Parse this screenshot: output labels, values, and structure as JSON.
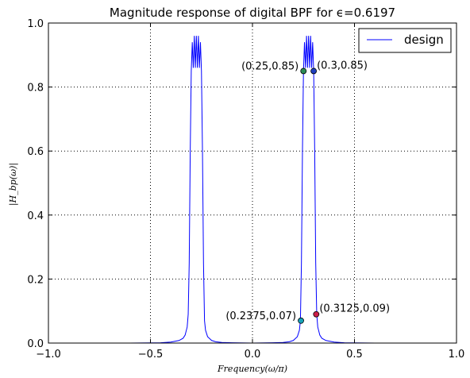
{
  "chart_data": {
    "type": "line",
    "title": "Magnitude response of digital BPF for ϵ=0.6197",
    "xlabel": "Frequency(ω/π)",
    "ylabel": "|H_bp(ω)|",
    "xlim": [
      -1.0,
      1.0
    ],
    "ylim": [
      0.0,
      1.0
    ],
    "xticks": [
      -1.0,
      -0.5,
      0.0,
      0.5,
      1.0
    ],
    "xtick_labels": [
      "−1.0",
      "−0.5",
      "0.0",
      "0.5",
      "1.0"
    ],
    "yticks": [
      0.0,
      0.2,
      0.4,
      0.6,
      0.8,
      1.0
    ],
    "ytick_labels": [
      "0.0",
      "0.2",
      "0.4",
      "0.6",
      "0.8",
      "1.0"
    ],
    "grid": true,
    "legend_position": "top-right",
    "series": [
      {
        "name": "design",
        "color": "#0000ff",
        "x": [
          -1.0,
          -0.6,
          -0.45,
          -0.4,
          -0.36,
          -0.34,
          -0.33,
          -0.32,
          -0.315,
          -0.31,
          -0.305,
          -0.3,
          -0.295,
          -0.29,
          -0.285,
          -0.28,
          -0.275,
          -0.27,
          -0.265,
          -0.26,
          -0.255,
          -0.25,
          -0.245,
          -0.24,
          -0.235,
          -0.23,
          -0.22,
          -0.2,
          -0.18,
          -0.15,
          -0.1,
          0.0,
          0.1,
          0.15,
          0.18,
          0.2,
          0.22,
          0.23,
          0.235,
          0.24,
          0.245,
          0.25,
          0.255,
          0.26,
          0.265,
          0.27,
          0.275,
          0.28,
          0.285,
          0.29,
          0.295,
          0.3,
          0.305,
          0.31,
          0.315,
          0.32,
          0.33,
          0.34,
          0.36,
          0.4,
          0.45,
          0.6,
          1.0
        ],
        "y": [
          0.0,
          0.0,
          0.001,
          0.003,
          0.008,
          0.015,
          0.025,
          0.05,
          0.09,
          0.25,
          0.6,
          0.85,
          0.94,
          0.86,
          0.96,
          0.86,
          0.96,
          0.86,
          0.96,
          0.86,
          0.94,
          0.85,
          0.6,
          0.25,
          0.07,
          0.04,
          0.02,
          0.008,
          0.004,
          0.002,
          0.001,
          0.0,
          0.001,
          0.002,
          0.004,
          0.008,
          0.02,
          0.04,
          0.07,
          0.25,
          0.6,
          0.85,
          0.94,
          0.86,
          0.96,
          0.86,
          0.96,
          0.86,
          0.96,
          0.86,
          0.94,
          0.85,
          0.6,
          0.25,
          0.09,
          0.05,
          0.025,
          0.015,
          0.008,
          0.003,
          0.001,
          0.0,
          0.0
        ]
      }
    ],
    "annotations": [
      {
        "label": "(0.25,0.85)",
        "x": 0.25,
        "y": 0.85,
        "color": "#2e8b57",
        "label_side": "left"
      },
      {
        "label": "(0.3,0.85)",
        "x": 0.3,
        "y": 0.85,
        "color": "#1f3fbf",
        "label_side": "right"
      },
      {
        "label": "(0.2375,0.07)",
        "x": 0.2375,
        "y": 0.07,
        "color": "#17a2b8",
        "label_side": "left"
      },
      {
        "label": "(0.3125,0.09)",
        "x": 0.3125,
        "y": 0.09,
        "color": "#cc1f4a",
        "label_side": "right"
      }
    ]
  }
}
